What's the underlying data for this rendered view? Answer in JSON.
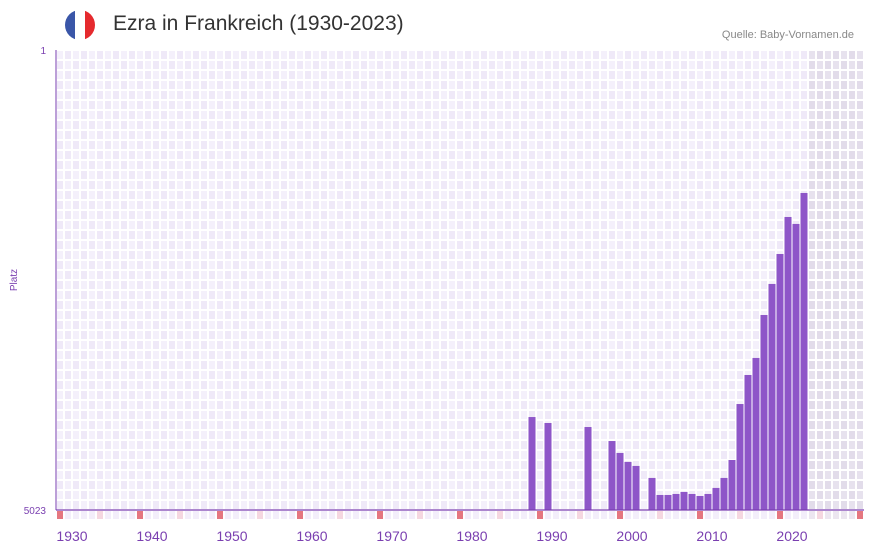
{
  "header": {
    "title": "Ezra in Frankreich (1930-2023)",
    "source": "Quelle: Baby-Vornamen.de",
    "flag_colors": [
      "#3a56a8",
      "#ffffff",
      "#e52a2e"
    ]
  },
  "chart_data": {
    "type": "bar",
    "title": "Ezra in Frankreich (1930-2023)",
    "xlabel": "",
    "ylabel": "Platz",
    "y_axis_inverted": true,
    "ylim": [
      1,
      5023
    ],
    "y_tick_labels": [
      "1",
      "5023"
    ],
    "x_range": [
      1929,
      2029
    ],
    "x_tick_labels": [
      "1930",
      "1940",
      "1950",
      "1960",
      "1970",
      "1980",
      "1990",
      "2000",
      "2010",
      "2020"
    ],
    "no_data_from": 2023,
    "grid": true,
    "bar_color": "#8e56c8",
    "x": [
      1988,
      1990,
      1995,
      1998,
      1999,
      2000,
      2001,
      2003,
      2004,
      2005,
      2006,
      2007,
      2008,
      2009,
      2010,
      2011,
      2012,
      2013,
      2014,
      2015,
      2016,
      2017,
      2018,
      2019,
      2020,
      2021,
      2022
    ],
    "values": [
      4008,
      4073,
      4117,
      4270,
      4400,
      4498,
      4542,
      4673,
      4859,
      4859,
      4848,
      4826,
      4848,
      4870,
      4848,
      4782,
      4673,
      4477,
      3866,
      3549,
      3363,
      2894,
      2555,
      2228,
      1824,
      1900,
      1562
    ]
  }
}
